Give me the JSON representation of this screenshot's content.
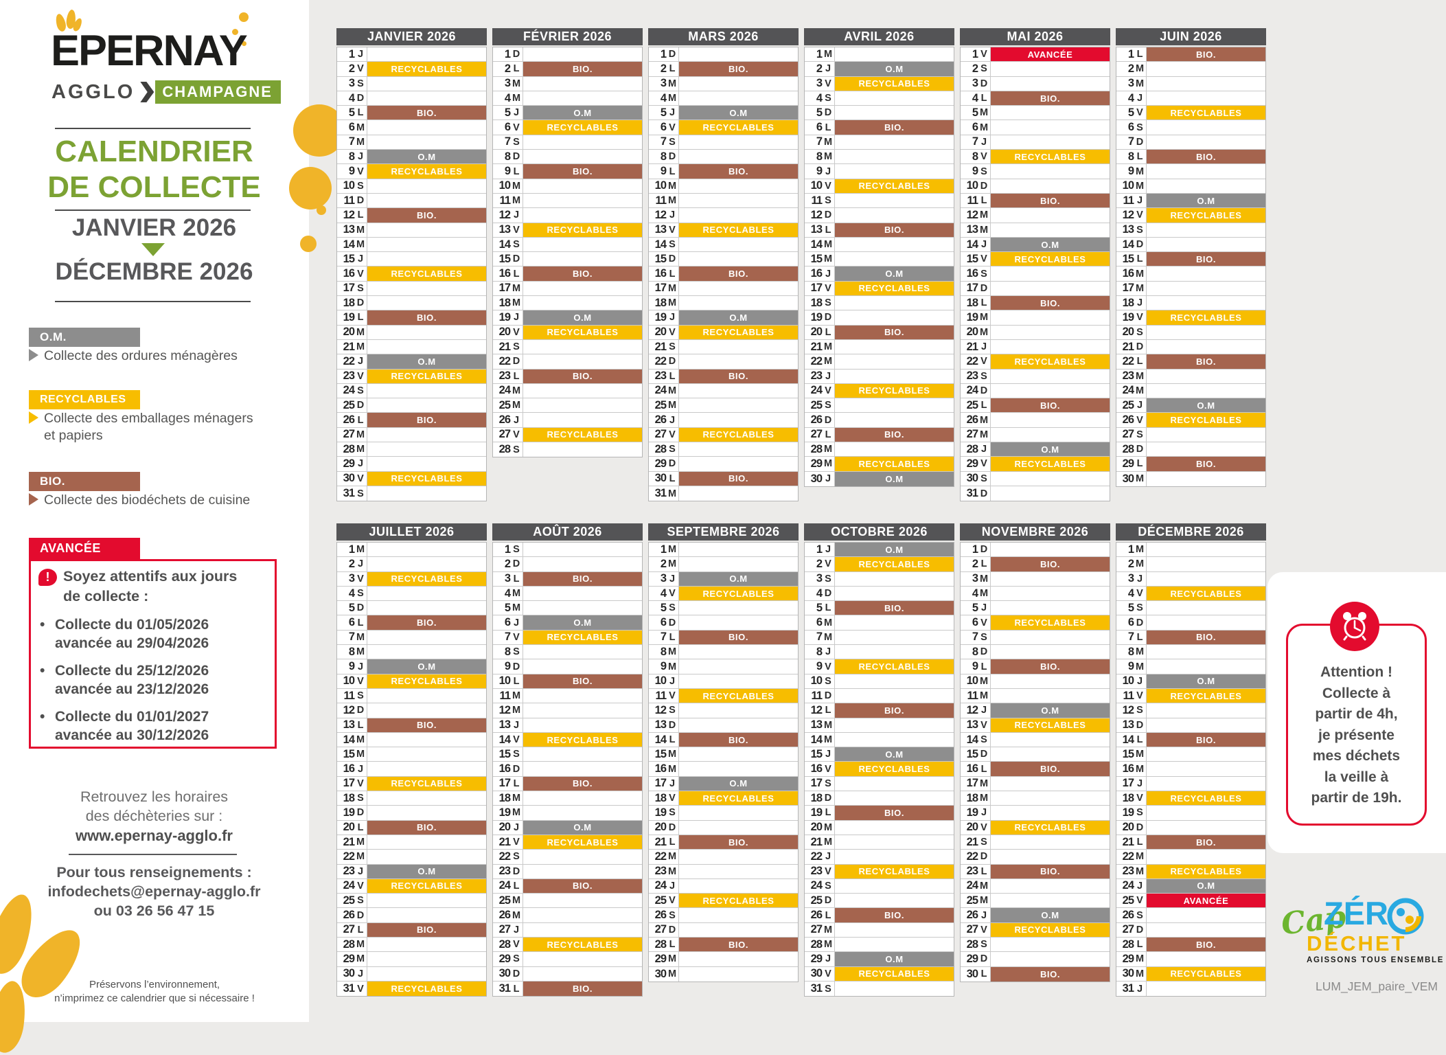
{
  "branding": {
    "city": "EPERNAY",
    "agglo": "AGGLO",
    "champagne": "CHAMPAGNE"
  },
  "title": {
    "line1": "CALENDRIER",
    "line2": "DE COLLECTE",
    "period_start": "JANVIER 2026",
    "period_end": "DÉCEMBRE 2026"
  },
  "legend": {
    "om_label": "O.M.",
    "om_desc": "Collecte des ordures ménagères",
    "rec_label": "RECYCLABLES",
    "rec_desc_line1": "Collecte des emballages ménagers",
    "rec_desc_line2": "et papiers",
    "bio_label": "BIO.",
    "bio_desc": "Collecte des biodéchets de cuisine",
    "om_color": "#8D8D8D",
    "rec_color": "#F7BD00",
    "bio_color": "#A5644E"
  },
  "advisory": {
    "advance_label": "AVANCÉE",
    "advance_color": "#E30B2E",
    "title_line1": "Soyez attentifs aux jours",
    "title_line2": "de collecte :",
    "icon": "exclamation-bubble-icon",
    "bullets": [
      {
        "line1": "Collecte du 01/05/2026",
        "line2": "avancée au 29/04/2026"
      },
      {
        "line1": "Collecte du 25/12/2026",
        "line2": "avancée au 23/12/2026"
      },
      {
        "line1": "Collecte du 01/01/2027",
        "line2": "avancée au 30/12/2026"
      }
    ]
  },
  "contact": {
    "hours_line1": "Retrouvez les horaires",
    "hours_line2": "des déchèteries sur :",
    "website": "www.epernay-agglo.fr",
    "info_title": "Pour tous renseignements :",
    "email": "infodechets@epernay-agglo.fr",
    "phone": "ou 03 26 56 47 15"
  },
  "eco_note": {
    "line1": "Préservons l’environnement,",
    "line2": "n’imprimez ce calendrier que si nécessaire !"
  },
  "attention_panel": {
    "icon": "alarm-clock-icon",
    "lines": [
      "Attention !",
      "Collecte à",
      "partir de 4h,",
      "je présente",
      "mes déchets",
      "la veille à",
      "partir de 19h."
    ]
  },
  "cap_logo": {
    "cap": "Cap",
    "zero_prefix": "ZÉR",
    "zero_o": "O",
    "dechet": "DÉCHET",
    "tagline": "AGISSONS TOUS ENSEMBLE",
    "green": "#6CB52F",
    "blue": "#29A9E1",
    "yellow": "#F2B600"
  },
  "ref_code": "LUM_JEM_paire_VEM",
  "calendar": {
    "day_letters": [
      "L",
      "M",
      "M",
      "J",
      "V",
      "S",
      "D"
    ],
    "band_types": {
      "OM": {
        "label": "O.M",
        "color": "#8E8E8E"
      },
      "REC": {
        "label": "RECYCLABLES",
        "color": "#F7BD00"
      },
      "BIO": {
        "label": "BIO.",
        "color": "#A5644E"
      },
      "AVA": {
        "label": "AVANCÉE",
        "color": "#E30B2E"
      }
    },
    "months": [
      {
        "name": "JANVIER 2026",
        "days": 31,
        "first_dow": 3,
        "events": {
          "2": "REC",
          "5": "BIO",
          "8": "OM",
          "9": "REC",
          "12": "BIO",
          "16": "REC",
          "19": "BIO",
          "22": "OM",
          "23": "REC",
          "26": "BIO",
          "30": "REC"
        }
      },
      {
        "name": "FÉVRIER 2026",
        "days": 28,
        "first_dow": 6,
        "events": {
          "2": "BIO",
          "5": "OM",
          "6": "REC",
          "9": "BIO",
          "13": "REC",
          "16": "BIO",
          "19": "OM",
          "20": "REC",
          "23": "BIO",
          "27": "REC"
        }
      },
      {
        "name": "MARS 2026",
        "days": 31,
        "first_dow": 6,
        "events": {
          "2": "BIO",
          "5": "OM",
          "6": "REC",
          "9": "BIO",
          "13": "REC",
          "16": "BIO",
          "19": "OM",
          "20": "REC",
          "23": "BIO",
          "27": "REC",
          "30": "BIO"
        }
      },
      {
        "name": "AVRIL 2026",
        "days": 30,
        "first_dow": 2,
        "events": {
          "2": "OM",
          "3": "REC",
          "6": "BIO",
          "10": "REC",
          "13": "BIO",
          "16": "OM",
          "17": "REC",
          "20": "BIO",
          "24": "REC",
          "27": "BIO",
          "29": "REC",
          "30": "OM"
        }
      },
      {
        "name": "MAI 2026",
        "days": 31,
        "first_dow": 4,
        "events": {
          "1": "AVA",
          "4": "BIO",
          "8": "REC",
          "11": "BIO",
          "14": "OM",
          "15": "REC",
          "18": "BIO",
          "22": "REC",
          "25": "BIO",
          "28": "OM",
          "29": "REC"
        }
      },
      {
        "name": "JUIN 2026",
        "days": 30,
        "first_dow": 0,
        "events": {
          "1": "BIO",
          "5": "REC",
          "8": "BIO",
          "11": "OM",
          "12": "REC",
          "15": "BIO",
          "19": "REC",
          "22": "BIO",
          "25": "OM",
          "26": "REC",
          "29": "BIO"
        }
      },
      {
        "name": "JUILLET 2026",
        "days": 31,
        "first_dow": 2,
        "events": {
          "3": "REC",
          "6": "BIO",
          "9": "OM",
          "10": "REC",
          "13": "BIO",
          "17": "REC",
          "20": "BIO",
          "23": "OM",
          "24": "REC",
          "27": "BIO",
          "31": "REC"
        }
      },
      {
        "name": "AOÛT 2026",
        "days": 31,
        "first_dow": 5,
        "events": {
          "3": "BIO",
          "6": "OM",
          "7": "REC",
          "10": "BIO",
          "14": "REC",
          "17": "BIO",
          "20": "OM",
          "21": "REC",
          "24": "BIO",
          "28": "REC",
          "31": "BIO"
        }
      },
      {
        "name": "SEPTEMBRE 2026",
        "days": 30,
        "first_dow": 1,
        "events": {
          "3": "OM",
          "4": "REC",
          "7": "BIO",
          "11": "REC",
          "14": "BIO",
          "17": "OM",
          "18": "REC",
          "21": "BIO",
          "25": "REC",
          "28": "BIO"
        }
      },
      {
        "name": "OCTOBRE 2026",
        "days": 31,
        "first_dow": 3,
        "events": {
          "1": "OM",
          "2": "REC",
          "5": "BIO",
          "9": "REC",
          "12": "BIO",
          "15": "OM",
          "16": "REC",
          "19": "BIO",
          "23": "REC",
          "26": "BIO",
          "29": "OM",
          "30": "REC"
        }
      },
      {
        "name": "NOVEMBRE 2026",
        "days": 30,
        "first_dow": 6,
        "events": {
          "2": "BIO",
          "6": "REC",
          "9": "BIO",
          "12": "OM",
          "13": "REC",
          "16": "BIO",
          "20": "REC",
          "23": "BIO",
          "26": "OM",
          "27": "REC",
          "30": "BIO"
        }
      },
      {
        "name": "DÉCEMBRE 2026",
        "days": 31,
        "first_dow": 1,
        "events": {
          "4": "REC",
          "7": "BIO",
          "10": "OM",
          "11": "REC",
          "14": "BIO",
          "18": "REC",
          "21": "BIO",
          "23": "REC",
          "24": "OM",
          "25": "AVA",
          "28": "BIO",
          "30": "REC"
        }
      }
    ]
  }
}
